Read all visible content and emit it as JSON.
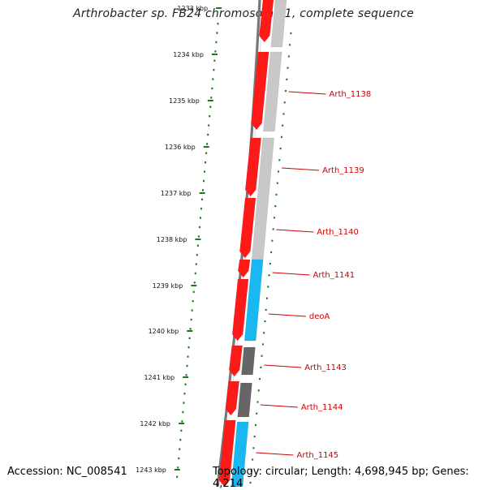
{
  "title": "Arthrobacter sp. FB24 chromosome 1, complete sequence",
  "footer": {
    "accession": "Accession: NC_008541",
    "summary": "Topology: circular; Length: 4,698,945 bp; Genes: 4,214"
  },
  "colors": {
    "forward_strand_gene": "#ff1a1a",
    "reverse_strand_gene": "#c8c8c8",
    "rna_gene": "#1ab8f0",
    "other_gene": "#666666",
    "backbone": "#777777",
    "tick": "#1a7a1a",
    "label": "#cc0000"
  },
  "ruler": {
    "first_label": "1233 kbp",
    "labels": [
      "1234 kbp",
      "1235 kbp",
      "1236 kbp",
      "1237 kbp",
      "1238 kbp",
      "1239 kbp",
      "1240 kbp",
      "1241 kbp",
      "1242 kbp",
      "1243 kbp"
    ]
  },
  "gene_labels": [
    "Arth_1138",
    "Arth_1139",
    "Arth_1140",
    "Arth_1141",
    "deoA",
    "Arth_1143",
    "Arth_1144",
    "Arth_1145"
  ]
}
